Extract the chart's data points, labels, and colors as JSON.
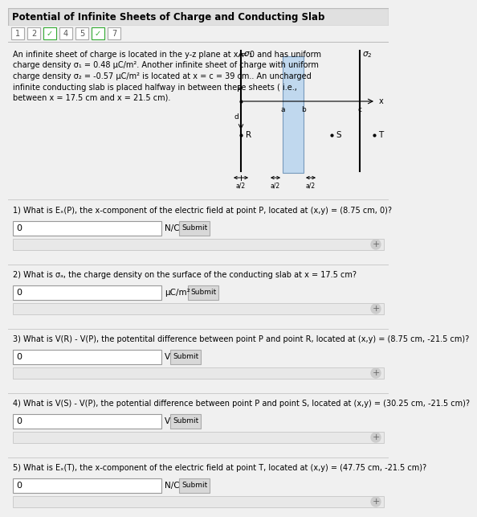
{
  "title": "Potential of Infinite Sheets of Charge and Conducting Slab",
  "breadcrumbs": [
    "1",
    "2",
    "✓",
    "4",
    "5",
    "✓",
    "7"
  ],
  "problem_text_lines": [
    "An infinite sheet of charge is located in the y-z plane at x = 0 and has uniform",
    "charge density σ₁ = 0.48 μC/m². Another infinite sheet of charge with uniform",
    "charge density σ₂ = -0.57 μC/m² is located at x = c = 39 cm.. An uncharged",
    "infinite conducting slab is placed halfway in between these sheets ( i.e.,",
    "between x = 17.5 cm and x = 21.5 cm)."
  ],
  "questions": [
    {
      "num": "1",
      "text": "What is Eₓ(P), the x-component of the electric field at point P, located at (x,y) = (8.75 cm, 0)?",
      "unit": "N/C",
      "answer": "0"
    },
    {
      "num": "2",
      "text": "What is σₐ, the charge density on the surface of the conducting slab at x = 17.5 cm?",
      "unit": "μC/m²",
      "answer": "0"
    },
    {
      "num": "3",
      "text": "What is V(R) - V(P), the potentital difference between point P and point R, located at (x,y) = (8.75 cm, -21.5 cm)?",
      "unit": "V",
      "answer": "0"
    },
    {
      "num": "4",
      "text": "What is V(S) - V(P), the potential difference between point P and point S, located at (x,y) = (30.25 cm, -21.5 cm)?",
      "unit": "V",
      "answer": "0"
    },
    {
      "num": "5",
      "text": "What is Eₓ(T), the x-component of the electric field at point T, located at (x,y) = (47.75 cm, -21.5 cm)?",
      "unit": "N/C",
      "answer": "0"
    }
  ],
  "bg_color": "#f0f0f0",
  "white": "#ffffff",
  "border_color": "#bbbbbb",
  "title_bg": "#e0e0e0",
  "button_bg": "#d8d8d8",
  "check_color": "#33aa33",
  "slab_color": "#c0d8ee",
  "feedback_bg": "#e8e8e8"
}
